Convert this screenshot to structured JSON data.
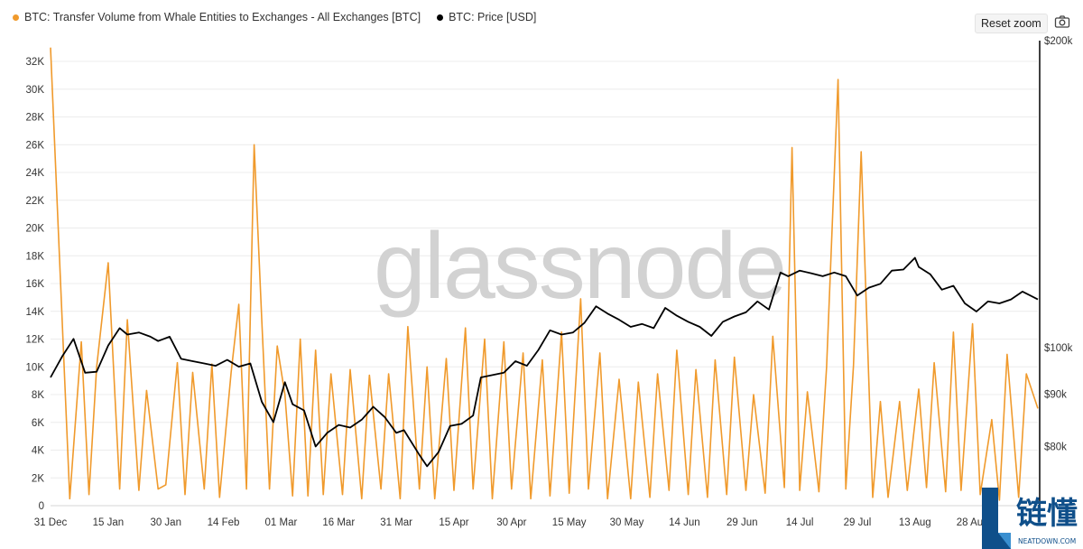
{
  "toolbar": {
    "reset_zoom_label": "Reset zoom",
    "camera_icon": "camera-icon"
  },
  "watermark": "glassnode",
  "logo": {
    "text": "链懂",
    "subtext": "NEATDOWN.COM"
  },
  "colors": {
    "volume": "#f09a2c",
    "price": "#000000"
  },
  "chart_data": {
    "type": "line",
    "title": "",
    "legend": [
      "BTC: Transfer Volume from Whale Entities to Exchanges - All Exchanges [BTC]",
      "BTC: Price [USD]"
    ],
    "legend_position": "top-left",
    "grid": true,
    "x_range": [
      "2024-12-31",
      "2025-09-14"
    ],
    "x_ticks": [
      "31 Dec",
      "15 Jan",
      "30 Jan",
      "14 Feb",
      "01 Mar",
      "16 Mar",
      "31 Mar",
      "15 Apr",
      "30 Apr",
      "15 May",
      "30 May",
      "14 Jun",
      "29 Jun",
      "14 Jul",
      "29 Jul",
      "13 Aug",
      "28 Aug"
    ],
    "y_left": {
      "label": "",
      "range": [
        0,
        33500
      ],
      "ticks": [
        "0",
        "2K",
        "4K",
        "6K",
        "8K",
        "10K",
        "12K",
        "14K",
        "16K",
        "18K",
        "20K",
        "22K",
        "24K",
        "26K",
        "28K",
        "30K",
        "32K"
      ]
    },
    "y_right": {
      "label": "",
      "scale": "log",
      "range": [
        70000,
        200000
      ],
      "ticks": [
        "$80k",
        "$90k",
        "$100k",
        "$200k"
      ]
    },
    "series": [
      {
        "name": "BTC: Transfer Volume from Whale Entities to Exchanges - All Exchanges [BTC]",
        "axis": "left",
        "x": [
          "2024-12-31",
          "2025-01-05",
          "2025-01-08",
          "2025-01-10",
          "2025-01-12",
          "2025-01-15",
          "2025-01-18",
          "2025-01-20",
          "2025-01-23",
          "2025-01-25",
          "2025-01-28",
          "2025-01-30",
          "2025-02-02",
          "2025-02-04",
          "2025-02-06",
          "2025-02-09",
          "2025-02-11",
          "2025-02-13",
          "2025-02-16",
          "2025-02-18",
          "2025-02-20",
          "2025-02-22",
          "2025-02-24",
          "2025-02-26",
          "2025-02-28",
          "2025-03-02",
          "2025-03-04",
          "2025-03-06",
          "2025-03-08",
          "2025-03-10",
          "2025-03-12",
          "2025-03-14",
          "2025-03-17",
          "2025-03-19",
          "2025-03-22",
          "2025-03-24",
          "2025-03-27",
          "2025-03-29",
          "2025-04-01",
          "2025-04-03",
          "2025-04-06",
          "2025-04-08",
          "2025-04-10",
          "2025-04-13",
          "2025-04-15",
          "2025-04-18",
          "2025-04-20",
          "2025-04-23",
          "2025-04-25",
          "2025-04-28",
          "2025-04-30",
          "2025-05-03",
          "2025-05-05",
          "2025-05-08",
          "2025-05-10",
          "2025-05-13",
          "2025-05-15",
          "2025-05-18",
          "2025-05-20",
          "2025-05-23",
          "2025-05-25",
          "2025-05-28",
          "2025-05-31",
          "2025-06-02",
          "2025-06-05",
          "2025-06-07",
          "2025-06-10",
          "2025-06-12",
          "2025-06-15",
          "2025-06-17",
          "2025-06-20",
          "2025-06-22",
          "2025-06-25",
          "2025-06-27",
          "2025-06-30",
          "2025-07-02",
          "2025-07-05",
          "2025-07-07",
          "2025-07-10",
          "2025-07-12",
          "2025-07-14",
          "2025-07-16",
          "2025-07-19",
          "2025-07-21",
          "2025-07-24",
          "2025-07-26",
          "2025-07-28",
          "2025-07-30",
          "2025-08-02",
          "2025-08-04",
          "2025-08-06",
          "2025-08-09",
          "2025-08-11",
          "2025-08-14",
          "2025-08-16",
          "2025-08-18",
          "2025-08-21",
          "2025-08-23",
          "2025-08-25",
          "2025-08-28",
          "2025-08-30",
          "2025-09-02",
          "2025-09-04",
          "2025-09-06",
          "2025-09-09",
          "2025-09-11",
          "2025-09-14"
        ],
        "y": [
          33000,
          500,
          11800,
          800,
          10000,
          17500,
          1200,
          13400,
          1100,
          8300,
          1200,
          1500,
          10300,
          800,
          9600,
          1200,
          10200,
          600,
          9600,
          14500,
          1200,
          26000,
          13300,
          1200,
          11500,
          8000,
          700,
          12000,
          700,
          11200,
          800,
          9500,
          800,
          9800,
          500,
          9400,
          1200,
          9500,
          500,
          12900,
          1200,
          10000,
          500,
          10600,
          1100,
          12800,
          1200,
          12000,
          500,
          11800,
          1200,
          11000,
          500,
          10500,
          700,
          12500,
          900,
          14900,
          1200,
          11000,
          500,
          9100,
          500,
          8900,
          600,
          9500,
          1100,
          11200,
          800,
          9800,
          600,
          10500,
          800,
          10700,
          1100,
          8000,
          900,
          12200,
          1300,
          25800,
          1100,
          8200,
          1000,
          10000,
          30700,
          1200,
          10100,
          25500,
          600,
          7500,
          600,
          7500,
          1100,
          8400,
          1300,
          10300,
          1000,
          12500,
          1100,
          13100,
          800,
          6200,
          400,
          10900,
          600,
          9500,
          7000
        ]
      },
      {
        "name": "BTC: Price [USD]",
        "axis": "right",
        "x": [
          "2024-12-31",
          "2025-01-03",
          "2025-01-06",
          "2025-01-09",
          "2025-01-12",
          "2025-01-15",
          "2025-01-18",
          "2025-01-20",
          "2025-01-23",
          "2025-01-26",
          "2025-01-28",
          "2025-01-31",
          "2025-02-03",
          "2025-02-06",
          "2025-02-09",
          "2025-02-12",
          "2025-02-15",
          "2025-02-18",
          "2025-02-21",
          "2025-02-24",
          "2025-02-27",
          "2025-03-02",
          "2025-03-04",
          "2025-03-07",
          "2025-03-10",
          "2025-03-13",
          "2025-03-16",
          "2025-03-19",
          "2025-03-22",
          "2025-03-25",
          "2025-03-28",
          "2025-03-31",
          "2025-04-02",
          "2025-04-06",
          "2025-04-08",
          "2025-04-11",
          "2025-04-14",
          "2025-04-17",
          "2025-04-20",
          "2025-04-22",
          "2025-04-25",
          "2025-04-28",
          "2025-05-01",
          "2025-05-04",
          "2025-05-07",
          "2025-05-10",
          "2025-05-13",
          "2025-05-16",
          "2025-05-19",
          "2025-05-22",
          "2025-05-25",
          "2025-05-28",
          "2025-05-31",
          "2025-06-03",
          "2025-06-06",
          "2025-06-09",
          "2025-06-12",
          "2025-06-15",
          "2025-06-18",
          "2025-06-21",
          "2025-06-24",
          "2025-06-27",
          "2025-06-30",
          "2025-07-03",
          "2025-07-06",
          "2025-07-09",
          "2025-07-11",
          "2025-07-14",
          "2025-07-17",
          "2025-07-20",
          "2025-07-23",
          "2025-07-26",
          "2025-07-29",
          "2025-08-01",
          "2025-08-04",
          "2025-08-07",
          "2025-08-10",
          "2025-08-13",
          "2025-08-14",
          "2025-08-17",
          "2025-08-20",
          "2025-08-23",
          "2025-08-26",
          "2025-08-29",
          "2025-09-01",
          "2025-09-04",
          "2025-09-07",
          "2025-09-10",
          "2025-09-14"
        ],
        "y": [
          93500,
          98000,
          102000,
          94500,
          94700,
          100500,
          104500,
          103000,
          103500,
          102500,
          101500,
          102500,
          97500,
          97000,
          96500,
          96000,
          97300,
          95800,
          96500,
          88500,
          84500,
          92500,
          88000,
          86800,
          80000,
          82500,
          84000,
          83500,
          85000,
          87500,
          85500,
          82500,
          83000,
          78500,
          76500,
          79000,
          83800,
          84200,
          85800,
          93500,
          94000,
          94500,
          97000,
          96000,
          99500,
          104000,
          103000,
          103500,
          105800,
          109800,
          108000,
          106500,
          104800,
          105500,
          104500,
          109400,
          107500,
          106000,
          104800,
          102700,
          106000,
          107300,
          108300,
          111000,
          109000,
          118500,
          117500,
          119000,
          118300,
          117500,
          118500,
          117500,
          112500,
          114500,
          115500,
          119000,
          119300,
          122500,
          120000,
          118000,
          114000,
          115000,
          110500,
          108500,
          111000,
          110500,
          111500,
          113500,
          111500
        ]
      }
    ]
  }
}
